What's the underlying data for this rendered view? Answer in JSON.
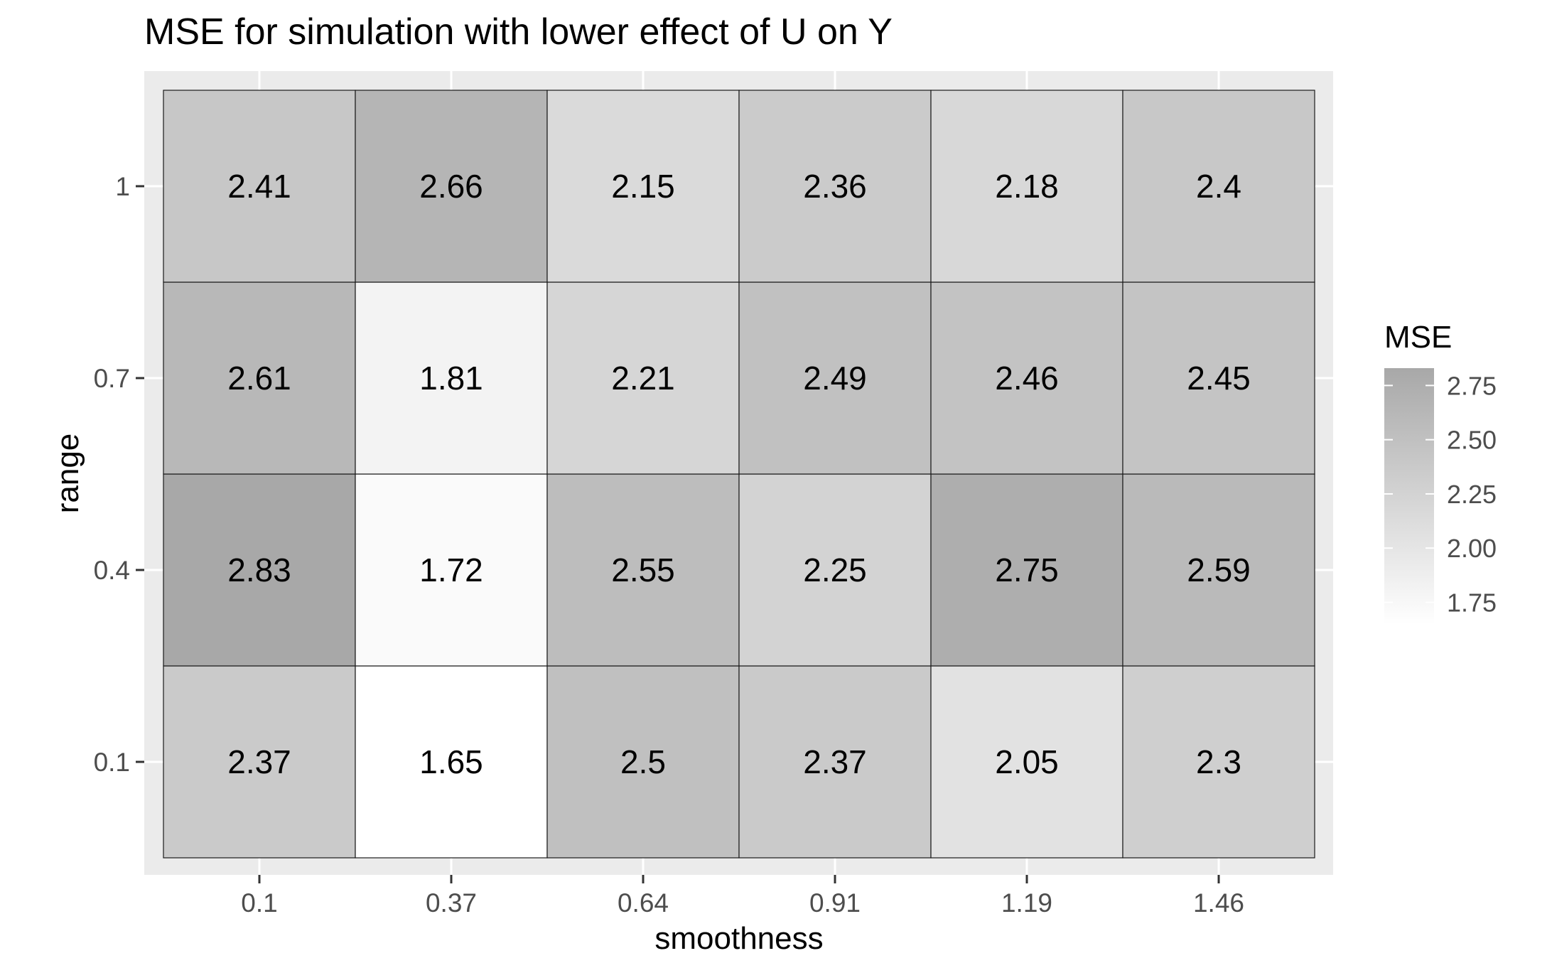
{
  "chart_data": {
    "type": "heatmap",
    "title": "MSE for simulation with lower effect of U on Y",
    "xlabel": "smoothness",
    "ylabel": "range",
    "x_categories": [
      "0.1",
      "0.37",
      "0.64",
      "0.91",
      "1.19",
      "1.46"
    ],
    "y_categories": [
      "0.1",
      "0.4",
      "0.7",
      "1"
    ],
    "values": [
      [
        2.37,
        1.65,
        2.5,
        2.37,
        2.05,
        2.3
      ],
      [
        2.83,
        1.72,
        2.55,
        2.25,
        2.75,
        2.59
      ],
      [
        2.61,
        1.81,
        2.21,
        2.49,
        2.46,
        2.45
      ],
      [
        2.41,
        2.66,
        2.15,
        2.36,
        2.18,
        2.4
      ]
    ],
    "cell_labels": [
      [
        "2.37",
        "1.65",
        "2.5",
        "2.37",
        "2.05",
        "2.3"
      ],
      [
        "2.83",
        "1.72",
        "2.55",
        "2.25",
        "2.75",
        "2.59"
      ],
      [
        "2.61",
        "1.81",
        "2.21",
        "2.49",
        "2.46",
        "2.45"
      ],
      [
        "2.41",
        "2.66",
        "2.15",
        "2.36",
        "2.18",
        "2.4"
      ]
    ],
    "legend": {
      "title": "MSE",
      "breaks": [
        1.75,
        2.0,
        2.25,
        2.5,
        2.75
      ],
      "break_labels": [
        "1.75",
        "2.00",
        "2.25",
        "2.50",
        "2.75"
      ],
      "placement": "right",
      "range": [
        1.65,
        2.83
      ]
    },
    "colors": {
      "low": "#ffffff",
      "high": "#a8a8a8",
      "panel_background": "#ebebeb",
      "grid": "#ffffff",
      "tile_border": "#1a1a1a",
      "text": "#000000",
      "tick_text": "#4d4d4d"
    },
    "grid": true
  }
}
